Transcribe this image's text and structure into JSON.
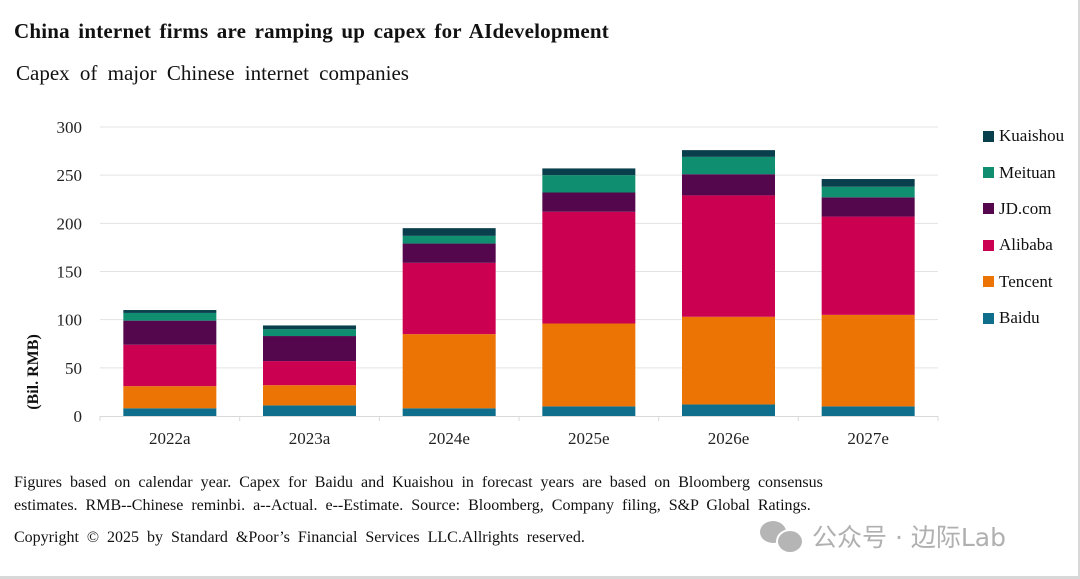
{
  "chart_data": {
    "type": "bar",
    "stacked": true,
    "title": "China internet  firms  are  ramping  up capex  for AIdevelopment",
    "subtitle": "Capex  of major  Chinese   internet   companies",
    "xlabel": "",
    "ylabel": "(Bil. RMB)",
    "ylim": [
      0,
      300
    ],
    "yticks": [
      0,
      50,
      100,
      150,
      200,
      250,
      300
    ],
    "grid": true,
    "legend_position": "right",
    "categories": [
      "2022a",
      "2023a",
      "2024e",
      "2025e",
      "2026e",
      "2027e"
    ],
    "series": [
      {
        "name": "Baidu",
        "color": "#0f6e8c",
        "values": [
          8,
          11,
          8,
          10,
          12,
          10
        ]
      },
      {
        "name": "Tencent",
        "color": "#ec7404",
        "values": [
          23,
          21,
          77,
          86,
          91,
          95
        ]
      },
      {
        "name": "Alibaba",
        "color": "#cc0050",
        "values": [
          43,
          25,
          74,
          116,
          126,
          102
        ]
      },
      {
        "name": "JD.com",
        "color": "#54074c",
        "values": [
          25,
          26,
          20,
          20,
          22,
          20
        ]
      },
      {
        "name": "Meituan",
        "color": "#0f8f70",
        "values": [
          8,
          7,
          8,
          18,
          18,
          11
        ]
      },
      {
        "name": "Kuaishou",
        "color": "#093e4c",
        "values": [
          3,
          4,
          8,
          7,
          7,
          8
        ]
      }
    ]
  },
  "legend_order": [
    "Kuaishou",
    "Meituan",
    "JD.com",
    "Alibaba",
    "Tencent",
    "Baidu"
  ],
  "notes": {
    "line1": "Figures  based   on calendar   year.  Capex  for Baidu and  Kuaishou  in forecast   years  are  based   on Bloomberg   consensus",
    "line2": "estimates.   RMB--Chinese   reminbi.  a--Actual.  e--Estimate.   Source:  Bloomberg,   Company   filing, S&P Global  Ratings.",
    "copyright": "Copyright  © 2025  by Standard   &Poor’s  Financial  Services   LLC.Allrights  reserved."
  },
  "watermark": {
    "text": "公众号 · 边际Lab",
    "icon": "wechat-icon"
  }
}
